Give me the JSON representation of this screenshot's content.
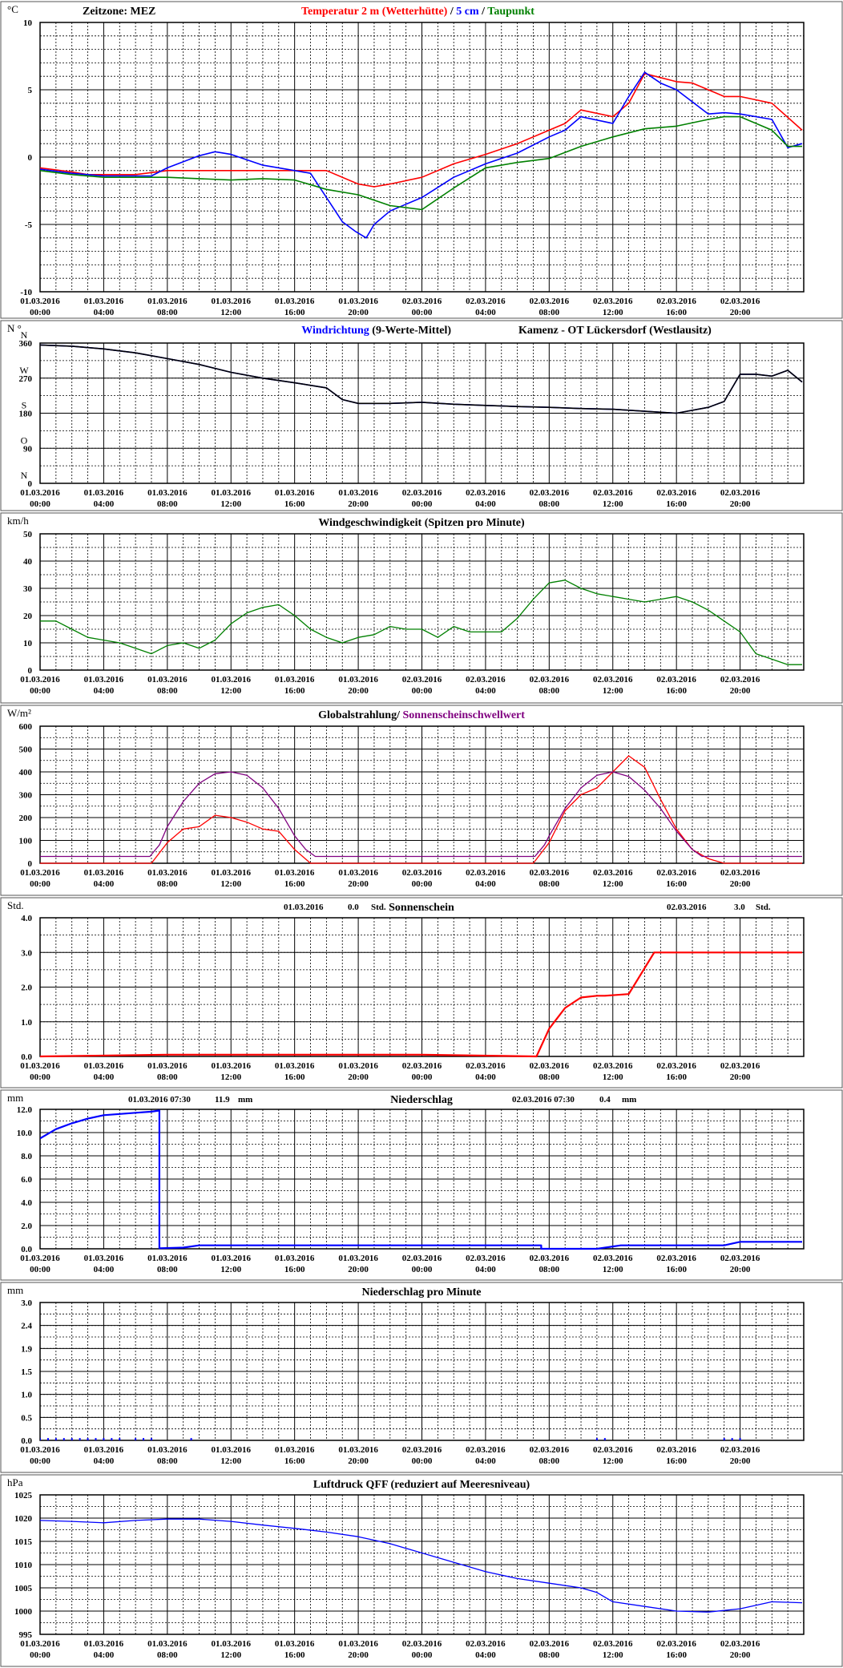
{
  "x_ticks": [
    [
      "01.03.2016",
      "00:00"
    ],
    [
      "01.03.2016",
      "04:00"
    ],
    [
      "01.03.2016",
      "08:00"
    ],
    [
      "01.03.2016",
      "12:00"
    ],
    [
      "01.03.2016",
      "16:00"
    ],
    [
      "01.03.2016",
      "20:00"
    ],
    [
      "02.03.2016",
      "00:00"
    ],
    [
      "02.03.2016",
      "04:00"
    ],
    [
      "02.03.2016",
      "08:00"
    ],
    [
      "02.03.2016",
      "12:00"
    ],
    [
      "02.03.2016",
      "16:00"
    ],
    [
      "02.03.2016",
      "20:00"
    ]
  ],
  "chart_data": [
    {
      "type": "line",
      "unit": "°C",
      "header_left": "Zeitzone: MEZ",
      "title_parts": [
        {
          "text": "Temperatur 2 m (Wetterhütte)",
          "color": "#ff0000"
        },
        {
          "text": "/",
          "color": "#000000"
        },
        {
          "text": "5 cm",
          "color": "#0000ff"
        },
        {
          "text": "/",
          "color": "#000000"
        },
        {
          "text": "Taupunkt",
          "color": "#008000"
        }
      ],
      "ylim": [
        -10,
        10
      ],
      "y_ticks": [
        "-10",
        "-5",
        "0",
        "5",
        "10"
      ],
      "series": [
        {
          "name": "Temperatur 2 m (Wetterhütte)",
          "color": "#ff0000",
          "x": [
            0,
            2,
            3,
            4,
            6,
            8,
            10,
            12,
            14,
            16,
            18,
            20,
            21,
            22,
            24,
            26,
            28,
            30,
            32,
            33,
            34,
            36,
            37,
            38,
            40,
            41,
            42,
            43,
            44,
            46,
            47.9
          ],
          "y": [
            -0.8,
            -1.1,
            -1.3,
            -1.3,
            -1.3,
            -1,
            -1,
            -1,
            -1,
            -1,
            -1,
            -2,
            -2.2,
            -2,
            -1.5,
            -0.5,
            0.2,
            1,
            2,
            2.5,
            3.5,
            3,
            4,
            6.2,
            5.6,
            5.5,
            5,
            4.5,
            4.5,
            4,
            2
          ]
        },
        {
          "name": "5 cm",
          "color": "#0000ff",
          "x": [
            0,
            2,
            4,
            6,
            7,
            8,
            10,
            11,
            12,
            14,
            16,
            17,
            18,
            19,
            19.8,
            20.5,
            21,
            22,
            23,
            24,
            26,
            28,
            30,
            32,
            33,
            34,
            36,
            37,
            38,
            39,
            40,
            42,
            43,
            44,
            46,
            47,
            47.9
          ],
          "y": [
            -0.9,
            -1.2,
            -1.4,
            -1.4,
            -1.4,
            -0.8,
            0.1,
            0.4,
            0.2,
            -0.6,
            -1,
            -1.2,
            -3,
            -4.8,
            -5.5,
            -6,
            -5,
            -4,
            -3.5,
            -3,
            -1.5,
            -0.5,
            0.3,
            1.5,
            2,
            3,
            2.5,
            4.5,
            6.3,
            5.5,
            5,
            3.2,
            3.3,
            3.2,
            2.8,
            0.7,
            1
          ]
        },
        {
          "name": "Taupunkt",
          "color": "#008000",
          "x": [
            0,
            2,
            4,
            6,
            8,
            10,
            12,
            14,
            16,
            18,
            20,
            22,
            24,
            26,
            28,
            30,
            32,
            34,
            36,
            38,
            40,
            42,
            43,
            44,
            46,
            47,
            47.9
          ],
          "y": [
            -1,
            -1.3,
            -1.5,
            -1.5,
            -1.5,
            -1.6,
            -1.7,
            -1.6,
            -1.7,
            -2.4,
            -2.8,
            -3.6,
            -3.9,
            -2.3,
            -0.8,
            -0.4,
            -0.1,
            0.8,
            1.5,
            2.1,
            2.3,
            2.8,
            3,
            3,
            2,
            0.8,
            0.8
          ]
        }
      ]
    },
    {
      "type": "line",
      "unit": "N °",
      "title_parts": [
        {
          "text": "Windrichtung",
          "color": "#0000ff"
        },
        {
          "text": "(9-Werte-Mittel)",
          "color": "#000000"
        }
      ],
      "title_right": "Kamenz - OT Lückersdorf (Westlausitz)",
      "ylim": [
        0,
        360
      ],
      "y_ticks": [
        "0",
        "90",
        "180",
        "270",
        "360"
      ],
      "dir_labels": [
        "N",
        "O",
        "S",
        "W",
        "N"
      ],
      "series": [
        {
          "name": "Windrichtung",
          "color": "#0000ff",
          "x": [
            0,
            2,
            4,
            6,
            8,
            10,
            12,
            14,
            16,
            18,
            19,
            20,
            22,
            24,
            26,
            28,
            30,
            32,
            34,
            36,
            38,
            40,
            42,
            43,
            44,
            45,
            46,
            47,
            47.9
          ],
          "y": [
            355,
            352,
            345,
            335,
            320,
            305,
            285,
            270,
            258,
            245,
            215,
            205,
            205,
            208,
            203,
            200,
            197,
            195,
            192,
            190,
            185,
            180,
            195,
            210,
            280,
            280,
            275,
            290,
            260
          ]
        },
        {
          "name": "9-Werte-Mittel",
          "color": "#000000",
          "x": [
            0,
            2,
            4,
            6,
            8,
            10,
            12,
            14,
            16,
            18,
            19,
            20,
            22,
            24,
            26,
            28,
            30,
            32,
            34,
            36,
            38,
            40,
            42,
            43,
            44,
            45,
            46,
            47,
            47.9
          ],
          "y": [
            355,
            352,
            345,
            335,
            320,
            305,
            285,
            270,
            258,
            245,
            215,
            205,
            205,
            208,
            203,
            200,
            197,
            195,
            192,
            190,
            185,
            180,
            195,
            210,
            280,
            280,
            275,
            290,
            260
          ]
        }
      ]
    },
    {
      "type": "line",
      "unit": "km/h",
      "title": "Windgeschwindigkeit (Spitzen pro Minute)",
      "ylim": [
        0,
        50
      ],
      "y_ticks": [
        "0",
        "10",
        "20",
        "30",
        "40",
        "50"
      ],
      "series": [
        {
          "name": "Windgeschwindigkeit",
          "color": "#008000",
          "x": [
            0,
            1,
            2,
            3,
            4,
            5,
            6,
            7,
            8,
            9,
            10,
            11,
            12,
            13,
            14,
            15,
            16,
            17,
            18,
            19,
            20,
            21,
            22,
            23,
            24,
            25,
            26,
            27,
            28,
            29,
            30,
            31,
            32,
            33,
            34,
            35,
            36,
            37,
            38,
            39,
            40,
            41,
            42,
            43,
            44,
            45,
            46,
            47,
            47.9
          ],
          "y": [
            18,
            18,
            15,
            12,
            11,
            10,
            8,
            6,
            9,
            10,
            8,
            11,
            17,
            21,
            23,
            24,
            20,
            15,
            12,
            10,
            12,
            13,
            16,
            15,
            15,
            12,
            16,
            14,
            14,
            14,
            19,
            26,
            32,
            33,
            30,
            28,
            27,
            26,
            25,
            26,
            27,
            25,
            22,
            18,
            14,
            6,
            4,
            2,
            2
          ]
        }
      ]
    },
    {
      "type": "line",
      "unit": "W/m²",
      "title_parts": [
        {
          "text": "Globalstrahlung/",
          "color": "#000000"
        },
        {
          "text": "Sonnenscheinschwellwert",
          "color": "#800080"
        }
      ],
      "ylim": [
        0,
        600
      ],
      "y_ticks": [
        "0",
        "100",
        "200",
        "300",
        "400",
        "500",
        "600"
      ],
      "series": [
        {
          "name": "Globalstrahlung",
          "color": "#ff0000",
          "x": [
            0,
            7,
            8,
            9,
            10,
            11,
            12,
            13,
            14,
            15,
            16,
            17,
            18,
            20,
            22,
            24,
            26,
            28,
            31,
            32,
            33,
            34,
            35,
            36,
            37,
            38,
            39,
            40,
            41,
            42,
            43,
            44,
            46,
            47.9
          ],
          "y": [
            0,
            0,
            90,
            150,
            160,
            210,
            200,
            180,
            150,
            140,
            60,
            0,
            0,
            0,
            0,
            0,
            0,
            0,
            0,
            90,
            230,
            300,
            330,
            400,
            470,
            420,
            280,
            150,
            60,
            20,
            0,
            0,
            0,
            0
          ]
        },
        {
          "name": "Sonnenscheinschwellwert",
          "color": "#800080",
          "x": [
            0,
            6.9,
            7.5,
            8,
            9,
            10,
            11,
            12,
            13,
            14,
            15,
            16,
            16.7,
            17.3,
            30,
            31.1,
            31.7,
            32,
            33,
            34,
            35,
            36,
            37,
            38,
            39,
            40,
            41,
            41.6,
            42.2,
            47.9
          ],
          "y": [
            30,
            30,
            80,
            160,
            270,
            350,
            392,
            400,
            385,
            330,
            240,
            120,
            60,
            30,
            30,
            30,
            80,
            120,
            240,
            330,
            385,
            400,
            380,
            320,
            240,
            140,
            60,
            30,
            30,
            30
          ]
        }
      ]
    },
    {
      "type": "line",
      "unit": "Std.",
      "title": "Sonnenschein",
      "stat_left": {
        "date": "01.03.2016",
        "value": "0.0",
        "unit": "Std."
      },
      "stat_right": {
        "date": "02.03.2016",
        "value": "3.0",
        "unit": "Std."
      },
      "ylim": [
        0,
        4
      ],
      "y_ticks": [
        "0.0",
        "1.0",
        "2.0",
        "3.0",
        "4.0"
      ],
      "series": [
        {
          "name": "Sonnenschein",
          "color": "#ff0000",
          "x": [
            0,
            8,
            24,
            31.2,
            32,
            33,
            34,
            35,
            35.5,
            37,
            38.6,
            47.9
          ],
          "y": [
            0,
            0.05,
            0.05,
            0,
            0.8,
            1.4,
            1.7,
            1.75,
            1.75,
            1.8,
            3.0,
            3.0
          ]
        }
      ]
    },
    {
      "type": "line",
      "unit": "mm",
      "title": "Niederschlag",
      "stat_left": {
        "date": "01.03.2016 07:30",
        "value": "11.9",
        "unit": "mm"
      },
      "stat_right": {
        "date": "02.03.2016 07:30",
        "value": "0.4",
        "unit": "mm"
      },
      "ylim": [
        0,
        12
      ],
      "y_ticks": [
        "0.0",
        "2.0",
        "4.0",
        "6.0",
        "8.0",
        "10.0",
        "12.0"
      ],
      "series": [
        {
          "name": "Niederschlag",
          "color": "#0000ff",
          "x": [
            0,
            1,
            2,
            3,
            4,
            5,
            6,
            7,
            7.5,
            7.5,
            9,
            10,
            20,
            31.5,
            31.5,
            35,
            36,
            36.5,
            43,
            44,
            47.9
          ],
          "y": [
            9.5,
            10.3,
            10.8,
            11.2,
            11.5,
            11.6,
            11.7,
            11.8,
            11.9,
            0.05,
            0.1,
            0.3,
            0.3,
            0.3,
            0,
            0,
            0.2,
            0.3,
            0.3,
            0.6,
            0.6
          ]
        }
      ]
    },
    {
      "type": "bar",
      "unit": "mm",
      "title": "Niederschlag pro Minute",
      "ylim": [
        0,
        3
      ],
      "y_ticks": [
        "0.0",
        "0.5",
        "1.0",
        "1.5",
        "1.9",
        "2.4",
        "3.0"
      ],
      "series": [
        {
          "name": "Niederschlag pro Minute",
          "color": "#0000ff",
          "x": [
            0,
            0.5,
            1,
            1.5,
            2,
            2.5,
            3,
            3.5,
            4,
            4.5,
            5,
            6,
            6.5,
            7,
            9.5,
            35,
            35.5,
            43,
            43.5,
            44
          ],
          "y": [
            0.05,
            0.05,
            0.05,
            0.05,
            0.05,
            0.05,
            0.05,
            0.05,
            0.05,
            0.05,
            0.05,
            0.05,
            0.05,
            0.05,
            0.05,
            0.05,
            0.05,
            0.05,
            0.05,
            0.05
          ]
        }
      ]
    },
    {
      "type": "line",
      "unit": "hPa",
      "title": "Luftdruck QFF (reduziert auf Meeresniveau)",
      "ylim": [
        995,
        1025
      ],
      "y_ticks": [
        "995",
        "1000",
        "1005",
        "1010",
        "1015",
        "1020",
        "1025"
      ],
      "series": [
        {
          "name": "Luftdruck QFF",
          "color": "#0000ff",
          "x": [
            0,
            2,
            4,
            6,
            8,
            10,
            12,
            14,
            16,
            18,
            20,
            22,
            24,
            26,
            28,
            30,
            32,
            34,
            35,
            36,
            38,
            40,
            42,
            44,
            46,
            47.9
          ],
          "y": [
            1019.5,
            1019.3,
            1019,
            1019.5,
            1019.8,
            1019.8,
            1019.3,
            1018.5,
            1017.8,
            1017,
            1016,
            1014.5,
            1012.5,
            1010.5,
            1008.5,
            1007,
            1006,
            1005,
            1004,
            1002,
            1001,
            1000,
            999.8,
            1000.5,
            1002,
            1001.8
          ]
        }
      ]
    }
  ]
}
